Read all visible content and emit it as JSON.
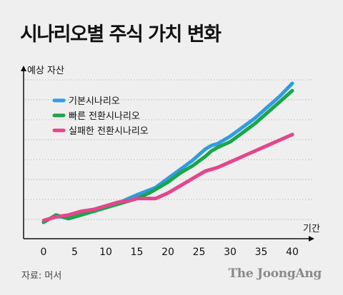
{
  "title": "시나리오별 주식 가치 변화",
  "source": "자료: 머서",
  "brand": "The JoongAng",
  "chart_data": {
    "type": "line",
    "title": "시나리오별 주식 가치 변화",
    "ylabel": "예상 자산",
    "xlabel": "기간",
    "xticks": [
      0,
      5,
      10,
      15,
      20,
      25,
      30,
      35,
      40
    ],
    "xlim": [
      -1.5,
      41
    ],
    "ylim": [
      0,
      9
    ],
    "grid": "horizontal dotted",
    "legend_position": "top-left",
    "series": [
      {
        "name": "기본시나리오",
        "color": "#2e9ee0",
        "x": [
          0,
          1,
          2,
          3,
          4,
          5,
          7,
          10,
          13,
          15,
          18,
          20,
          22,
          24,
          26,
          27,
          28,
          30,
          32,
          34,
          36,
          38,
          40
        ],
        "y": [
          1.4,
          1.6,
          1.7,
          1.7,
          1.7,
          1.7,
          1.9,
          2.2,
          2.6,
          2.9,
          3.3,
          3.8,
          4.3,
          4.8,
          5.4,
          5.6,
          5.7,
          6.1,
          6.6,
          7.1,
          7.7,
          8.3,
          9.0
        ]
      },
      {
        "name": "빠른 전환시나리오",
        "color": "#1aa648",
        "x": [
          0,
          1,
          2,
          3,
          4,
          5,
          7,
          10,
          13,
          15,
          17,
          18,
          20,
          22,
          24,
          26,
          27,
          28,
          30,
          32,
          34,
          36,
          38,
          40
        ],
        "y": [
          1.4,
          1.6,
          1.8,
          1.7,
          1.6,
          1.7,
          1.9,
          2.2,
          2.5,
          2.7,
          3.0,
          3.2,
          3.6,
          4.1,
          4.5,
          5.0,
          5.3,
          5.5,
          5.8,
          6.3,
          6.8,
          7.4,
          8.0,
          8.6
        ]
      },
      {
        "name": "실패한 전환시나리오",
        "color": "#e6458b",
        "x": [
          0,
          2,
          4,
          6,
          8,
          10,
          12,
          14,
          15,
          16,
          18,
          20,
          22,
          24,
          26,
          28,
          30,
          32,
          34,
          36,
          38,
          40
        ],
        "y": [
          1.5,
          1.7,
          1.8,
          2.0,
          2.1,
          2.3,
          2.5,
          2.6,
          2.7,
          2.7,
          2.7,
          3.0,
          3.4,
          3.8,
          4.2,
          4.4,
          4.7,
          5.0,
          5.3,
          5.6,
          5.9,
          6.2
        ]
      }
    ]
  }
}
